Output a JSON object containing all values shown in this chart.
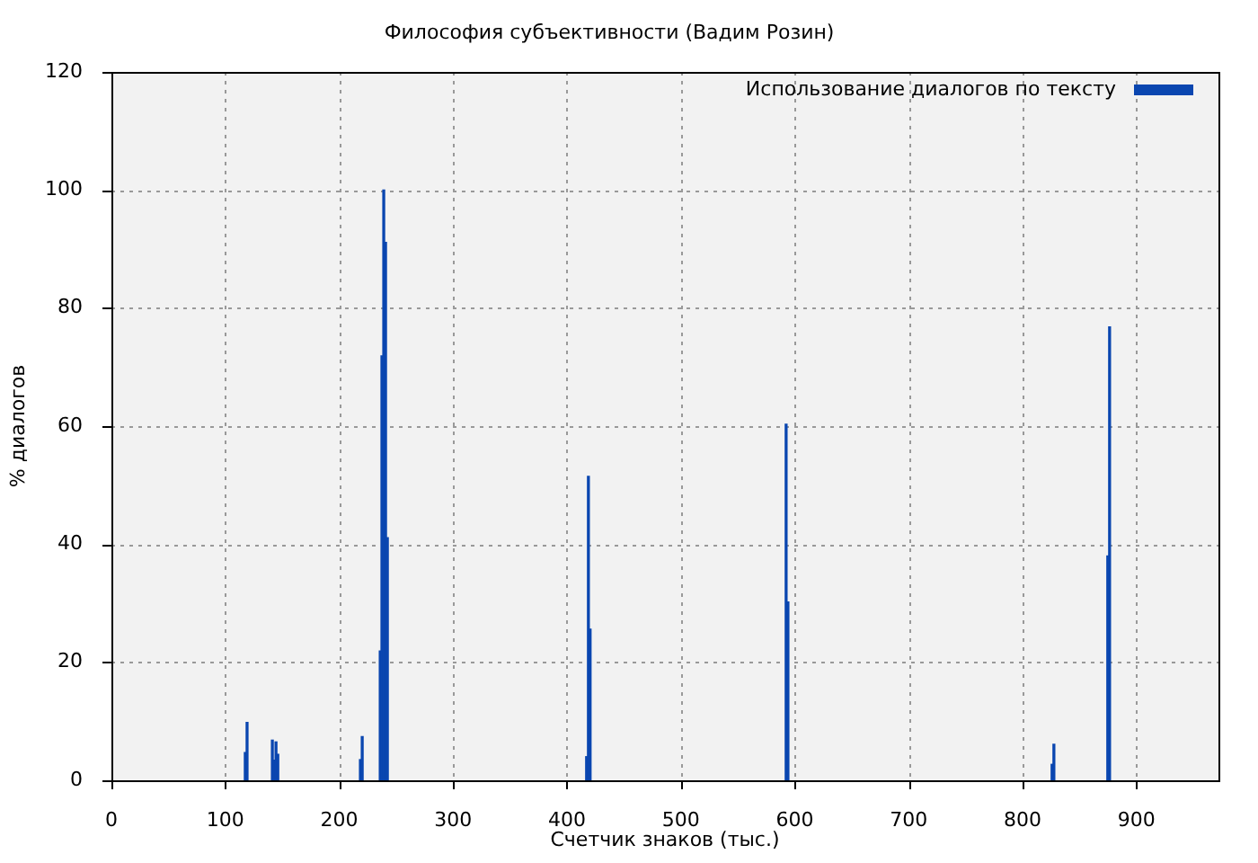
{
  "chart_data": {
    "type": "bar",
    "title": "Философия субъективности (Вадим Розин)",
    "xlabel": "Счетчик знаков (тыс.)",
    "ylabel": "% диалогов",
    "x": [
      117.5,
      119.1,
      141.3,
      142.9,
      144.5,
      146.1,
      218.6,
      220.2,
      236,
      237.5,
      239.1,
      240.7,
      242.3,
      417.2,
      418.8,
      420.3,
      592.4,
      594,
      825.9,
      827.5,
      874.8,
      876.4
    ],
    "series": [
      {
        "name": "Использование диалогов по тексту",
        "color": "#0a46b0",
        "values": [
          4.7,
          9.8,
          6.8,
          3.4,
          6.5,
          4.4,
          3.5,
          7.4,
          21.9,
          71.9,
          100,
          91.1,
          41.1,
          4,
          51.5,
          25.6,
          60.3,
          30.2,
          2.7,
          6.1,
          38,
          76.8
        ]
      }
    ],
    "xlim": [
      0,
      972
    ],
    "ylim": [
      0,
      120
    ],
    "xticks": [
      0,
      100,
      200,
      300,
      400,
      500,
      600,
      700,
      800,
      900
    ],
    "yticks": [
      0,
      20,
      40,
      60,
      80,
      100,
      120
    ],
    "grid": true,
    "legend": "top right"
  }
}
